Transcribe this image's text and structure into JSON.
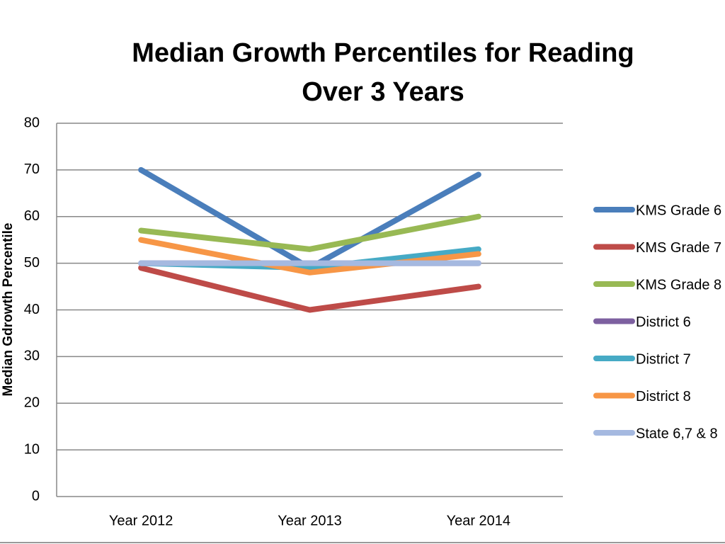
{
  "chart_data": {
    "type": "line",
    "title": "Median Growth Percentiles for Reading Over 3 Years",
    "y_label": "Median Gdrowth Percentile",
    "categories": [
      "Year 2012",
      "Year 2013",
      "Year 2014"
    ],
    "series": [
      {
        "name": "KMS Grade 6",
        "color": "#4a7ebb",
        "values": [
          70,
          49,
          69
        ]
      },
      {
        "name": "KMS Grade 7",
        "color": "#be4b48",
        "values": [
          49,
          40,
          45
        ]
      },
      {
        "name": "KMS Grade 8",
        "color": "#98b954",
        "values": [
          57,
          53,
          60
        ]
      },
      {
        "name": "District 6",
        "color": "#7d60a0",
        "values": [
          50,
          50,
          50
        ]
      },
      {
        "name": "District 7",
        "color": "#46aac5",
        "values": [
          50,
          49,
          53
        ]
      },
      {
        "name": "District 8",
        "color": "#f79646",
        "values": [
          55,
          48,
          52
        ]
      },
      {
        "name": "State 6,7 & 8",
        "color": "#a5b9e0",
        "values": [
          50,
          50,
          50
        ]
      }
    ],
    "ylim": [
      0,
      80
    ],
    "yticks": [
      0,
      10,
      20,
      30,
      40,
      50,
      60,
      70,
      80
    ],
    "grid": true,
    "legend": "right"
  }
}
